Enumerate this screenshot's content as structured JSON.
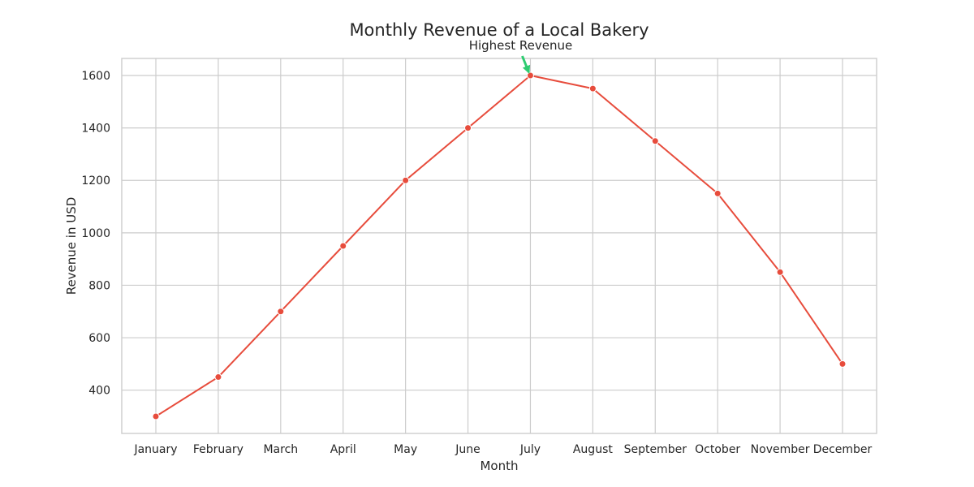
{
  "chart_data": {
    "type": "line",
    "title": "Monthly Revenue of a Local Bakery",
    "xlabel": "Month",
    "ylabel": "Revenue in USD",
    "categories": [
      "January",
      "February",
      "March",
      "April",
      "May",
      "June",
      "July",
      "August",
      "September",
      "October",
      "November",
      "December"
    ],
    "series": [
      {
        "values": [
          300,
          450,
          700,
          950,
          1200,
          1400,
          1600,
          1550,
          1350,
          1150,
          850,
          500
        ]
      }
    ],
    "ylim": [
      235,
      1665
    ],
    "yticks": [
      400,
      600,
      800,
      1000,
      1200,
      1400,
      1600
    ],
    "grid": true,
    "annotation": {
      "text": "Highest Revenue",
      "category": "July",
      "value": 1600,
      "arrow_color": "#2ecc71"
    },
    "colors": {
      "line": "#e74c3c",
      "marker": "#e74c3c",
      "grid": "#cccccc",
      "text": "#262626"
    }
  }
}
